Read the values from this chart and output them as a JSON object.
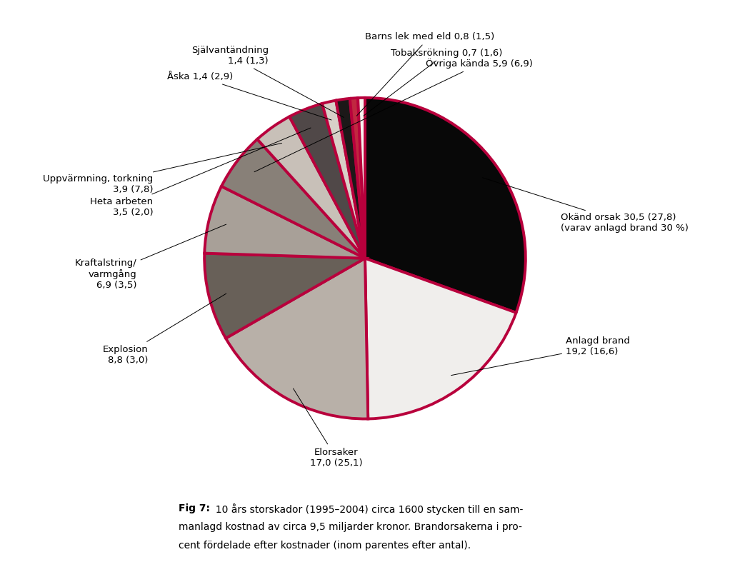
{
  "slices": [
    {
      "label": "Okänd orsak 30,5 (27,8)\n(varav anlagd brand 30 %)",
      "value": 30.5,
      "color": "#080808"
    },
    {
      "label": "Anlagd brand\n19,2 (16,6)",
      "value": 19.2,
      "color": "#f0eeec"
    },
    {
      "label": "Elorsaker\n17,0 (25,1)",
      "value": 17.0,
      "color": "#b8b0a8"
    },
    {
      "label": "Explosion\n8,8 (3,0)",
      "value": 8.8,
      "color": "#686058"
    },
    {
      "label": "Kraftalstring/\nvarmgång\n6,9 (3,5)",
      "value": 6.9,
      "color": "#a8a098"
    },
    {
      "label": "Övriga kända 5,9 (6,9)",
      "value": 5.9,
      "color": "#888078"
    },
    {
      "label": "Uppvärmning, torkning\n3,9 (7,8)",
      "value": 3.9,
      "color": "#c8c0b8"
    },
    {
      "label": "Heta arbeten\n3,5 (2,0)",
      "value": 3.5,
      "color": "#504848"
    },
    {
      "label": "Åska 1,4 (2,9)",
      "value": 1.4,
      "color": "#d8d0c8"
    },
    {
      "label": "Självantändning\n1,4 (1,3)",
      "value": 1.4,
      "color": "#1c1818"
    },
    {
      "label": "Barns lek med eld 0,8 (1,5)",
      "value": 0.8,
      "color": "#c02840"
    },
    {
      "label": "Tobaksrökning 0,7 (1,6)",
      "value": 0.7,
      "color": "#f8f4f0"
    }
  ],
  "pie_edge_color": "#b8003c",
  "pie_linewidth": 2.8,
  "background_color": "#ffffff",
  "start_angle": 90,
  "font_size": 9.5,
  "caption_bold": "Fig 7:",
  "caption_rest": "  10 års storskador (1995–2004) circa 1600 stycken till en sam-\nmanlagd kostnad av circa 9,5 miljarder kronor. Brandorsakerna i pro-\ncent fördelade efter kostnader (inom parentes efter antal)."
}
